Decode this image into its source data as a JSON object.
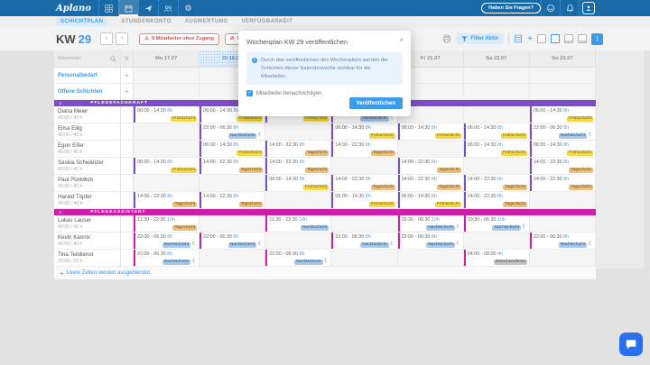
{
  "topbar": {
    "logo": "Aplano",
    "help_label": "Haben Sie Fragen?"
  },
  "subnav": {
    "tabs": [
      {
        "label": "SCHICHTPLAN",
        "active": true
      },
      {
        "label": "STUNDENKONTO",
        "active": false
      },
      {
        "label": "AUSWERTUNG",
        "active": false
      },
      {
        "label": "VERFÜGBARKEIT",
        "active": false
      }
    ]
  },
  "header": {
    "week_label": "KW",
    "week_number": "29",
    "prev": "‹",
    "next": "›",
    "access_warning": "9 Mitarbeiter ohne Zugang",
    "publish_warning": "Wochenplan veröffentlichen",
    "filter_label": "Filter Aktiv"
  },
  "modal": {
    "title": "Wochenplan KW 29 veröffentlichen",
    "close": "×",
    "info_text": "Durch das veröffentlichen des Wochenplans werden die Schichten dieser Kalenderwoche sichtbar für die Mitarbeiter.",
    "checkbox_label": "Mitarbeiter benachrichtigen",
    "checkbox_checked": true,
    "submit_label": "Veröffentlichen"
  },
  "icons": {
    "moon": "☾",
    "warning": "⚠",
    "blocked": "⊘",
    "chevron": "∨",
    "check": "✓",
    "sort": "⇅",
    "plus": "+",
    "kebab": "⋮",
    "gear": "⚙"
  },
  "colors": {
    "topbar": "#1b6aa8",
    "accent": "#3d9be9",
    "danger": "#d9534f",
    "group1": "#7e4ccb",
    "group2": "#cb1fa7",
    "chat": "#2a6ff1"
  },
  "tags": {
    "fruh": {
      "label": "Frühschicht",
      "bg": "#f2d848",
      "fg": "#7a6a12"
    },
    "tag": {
      "label": "Tagschicht",
      "bg": "#eabe7c",
      "fg": "#7d4e1d"
    },
    "nacht": {
      "label": "Nachtschicht",
      "bg": "#a9c9ec",
      "fg": "#2f5578"
    },
    "zwischen": {
      "label": "Zwischendienst",
      "bg": "#c6c6c6",
      "fg": "#4a4a4a"
    }
  },
  "schedule": {
    "search_placeholder": "Mitarbeiter",
    "days": [
      {
        "label": "Mo 17.07",
        "today": false
      },
      {
        "label": "Di 18.07",
        "today": true
      },
      {
        "label": "Mi 19.07",
        "today": false
      },
      {
        "label": "Do 20.07",
        "today": false
      },
      {
        "label": "Fr 21.07",
        "today": false
      },
      {
        "label": "Sa 22.07",
        "today": false
      },
      {
        "label": "So 23.07",
        "today": false
      }
    ],
    "special_rows": [
      {
        "name": "row-personalbedarf",
        "label": "Personalbedarf"
      },
      {
        "name": "row-offene-schichten",
        "label": "Offene Schichten"
      }
    ],
    "footer_note": "Leere Zeilen werden ausgeblendet.",
    "groups": [
      {
        "name": "PFLEGEFACHKRAFT",
        "color": "#7e4ccb",
        "employees": [
          {
            "name": "Diana Meier",
            "hours": "40:00 / 40 h",
            "shifts": [
              {
                "t": "06:00 - 14:30",
                "d": "8h",
                "k": "fruh",
                "m": false
              },
              {
                "t": "06:00 - 14:30",
                "d": "8h",
                "k": "fruh",
                "m": false
              },
              {
                "t": "06:00 - 14:30",
                "d": "8h",
                "k": "fruh",
                "m": false
              },
              {
                "t": "22:00 - 06:30",
                "d": "8h",
                "k": "nacht",
                "m": true
              },
              null,
              null,
              {
                "t": "06:00 - 14:30",
                "d": "8h",
                "k": "fruh",
                "m": false
              }
            ]
          },
          {
            "name": "Elisa Eilig",
            "hours": "40:00 / 40 h",
            "shifts": [
              null,
              {
                "t": "22:00 - 06:30",
                "d": "8h",
                "k": "nacht",
                "m": true
              },
              null,
              {
                "t": "06:00 - 14:30",
                "d": "8h",
                "k": "fruh",
                "m": false
              },
              {
                "t": "06:00 - 14:30",
                "d": "8h",
                "k": "fruh",
                "m": false
              },
              {
                "t": "06:00 - 14:30",
                "d": "8h",
                "k": "fruh",
                "m": false
              },
              {
                "t": "22:00 - 06:30",
                "d": "8h",
                "k": "nacht",
                "m": true
              }
            ]
          },
          {
            "name": "Egon Eifer",
            "hours": "40:00 / 40 h",
            "shifts": [
              null,
              {
                "t": "06:00 - 14:30",
                "d": "8h",
                "k": "fruh",
                "m": false
              },
              {
                "t": "14:00 - 22:30",
                "d": "8h",
                "k": "tag",
                "m": false
              },
              {
                "t": "14:00 - 22:30",
                "d": "8h",
                "k": "tag",
                "m": false
              },
              null,
              {
                "t": "06:00 - 14:30",
                "d": "8h",
                "k": "fruh",
                "m": false
              },
              {
                "t": "06:00 - 14:30",
                "d": "8h",
                "k": "fruh",
                "m": false
              }
            ]
          },
          {
            "name": "Saskia Schwänzer",
            "hours": "40:00 / 40 h",
            "shifts": [
              {
                "t": "06:00 - 14:30",
                "d": "8h",
                "k": "fruh",
                "m": false
              },
              {
                "t": "14:00 - 22:30",
                "d": "8h",
                "k": "tag",
                "m": false
              },
              {
                "t": "14:00 - 22:30",
                "d": "8h",
                "k": "tag",
                "m": false
              },
              null,
              {
                "t": "14:00 - 22:30",
                "d": "8h",
                "k": "tag",
                "m": false
              },
              null,
              {
                "t": "14:00 - 22:30",
                "d": "8h",
                "k": "tag",
                "m": false
              }
            ]
          },
          {
            "name": "Paul Pünktlich",
            "hours": "40:00 / 40 h",
            "shifts": [
              null,
              null,
              {
                "t": "06:00 - 14:30",
                "d": "8h",
                "k": "fruh",
                "m": false
              },
              {
                "t": "14:00 - 22:30",
                "d": "8h",
                "k": "tag",
                "m": false
              },
              {
                "t": "14:00 - 22:30",
                "d": "8h",
                "k": "tag",
                "m": false
              },
              {
                "t": "14:00 - 22:30",
                "d": "8h",
                "k": "tag",
                "m": false
              },
              {
                "t": "14:00 - 22:30",
                "d": "8h",
                "k": "tag",
                "m": false
              }
            ]
          },
          {
            "name": "Harald Töpfer",
            "hours": "40:00 / 40 h",
            "shifts": [
              {
                "t": "14:00 - 22:30",
                "d": "8h",
                "k": "tag",
                "m": false
              },
              {
                "t": "14:00 - 22:30",
                "d": "8h",
                "k": "tag",
                "m": false
              },
              null,
              {
                "t": "06:00 - 14:30",
                "d": "8h",
                "k": "fruh",
                "m": false
              },
              {
                "t": "06:00 - 14:30",
                "d": "8h",
                "k": "fruh",
                "m": false
              },
              {
                "t": "14:00 - 22:30",
                "d": "8h",
                "k": "tag",
                "m": false
              },
              null
            ]
          }
        ]
      },
      {
        "name": "PFLEGEASSISTENT",
        "color": "#cb1fa7",
        "employees": [
          {
            "name": "Lukas Lauser",
            "hours": "40:00 / 40 h",
            "shifts": [
              {
                "t": "11:30 - 22:30",
                "d": "10h",
                "k": "tag",
                "m": false
              },
              null,
              {
                "t": "11:30 - 22:30",
                "d": "10h",
                "k": "nacht",
                "m": false
              },
              null,
              {
                "t": "19:30 - 06:30",
                "d": "10h",
                "k": "nacht",
                "m": true
              },
              {
                "t": "19:30 - 06:30",
                "d": "10h",
                "k": "nacht",
                "m": true
              },
              null
            ]
          },
          {
            "name": "Kevin Kannix",
            "hours": "40:00 / 40 h",
            "shifts": [
              {
                "t": "22:00 - 06:30",
                "d": "8h",
                "k": "nacht",
                "m": true
              },
              {
                "t": "22:00 - 06:30",
                "d": "8h",
                "k": "nacht",
                "m": true
              },
              null,
              {
                "t": "22:00 - 06:30",
                "d": "8h",
                "k": "nacht",
                "m": true
              },
              {
                "t": "22:00 - 06:30",
                "d": "8h",
                "k": "nacht",
                "m": true
              },
              null,
              {
                "t": "22:00 - 06:30",
                "d": "8h",
                "k": "nacht",
                "m": true
              }
            ]
          },
          {
            "name": "Tina Teildienst",
            "hours": "20:00 / 20 h",
            "shifts": [
              {
                "t": "22:00 - 06:30",
                "d": "8h",
                "k": "nacht",
                "m": true
              },
              null,
              {
                "t": "22:00 - 06:30",
                "d": "8h",
                "k": "nacht",
                "m": true
              },
              null,
              null,
              {
                "t": "04:00 - 08:00",
                "d": "4h",
                "k": "zwischen",
                "m": false
              },
              null
            ]
          }
        ]
      }
    ]
  }
}
